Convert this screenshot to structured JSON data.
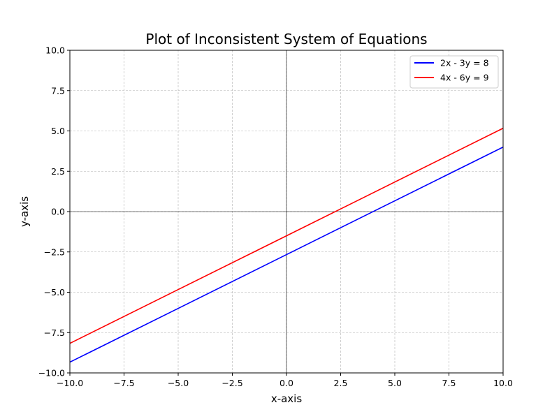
{
  "chart_data": {
    "type": "line",
    "title": "Plot of Inconsistent System of Equations",
    "xlabel": "x-axis",
    "ylabel": "y-axis",
    "xlim": [
      -10,
      10
    ],
    "ylim": [
      -10,
      10
    ],
    "xticks": [
      -10,
      -7.5,
      -5,
      -2.5,
      0,
      2.5,
      5,
      7.5,
      10
    ],
    "yticks": [
      -10,
      -7.5,
      -5,
      -2.5,
      0,
      2.5,
      5,
      7.5,
      10
    ],
    "xtick_labels": [
      "−10.0",
      "−7.5",
      "−5.0",
      "−2.5",
      "0.0",
      "2.5",
      "5.0",
      "7.5",
      "10.0"
    ],
    "ytick_labels": [
      "−10.0",
      "−7.5",
      "−5.0",
      "−2.5",
      "0.0",
      "2.5",
      "5.0",
      "7.5",
      "10.0"
    ],
    "grid": true,
    "legend_position": "top-right",
    "series": [
      {
        "name": "2x - 3y = 8",
        "color": "#0000ff",
        "x": [
          -10,
          10
        ],
        "y": [
          -9.333,
          4.0
        ]
      },
      {
        "name": "4x - 6y = 9",
        "color": "#ff0000",
        "x": [
          -10,
          10
        ],
        "y": [
          -8.167,
          5.167
        ]
      }
    ]
  }
}
